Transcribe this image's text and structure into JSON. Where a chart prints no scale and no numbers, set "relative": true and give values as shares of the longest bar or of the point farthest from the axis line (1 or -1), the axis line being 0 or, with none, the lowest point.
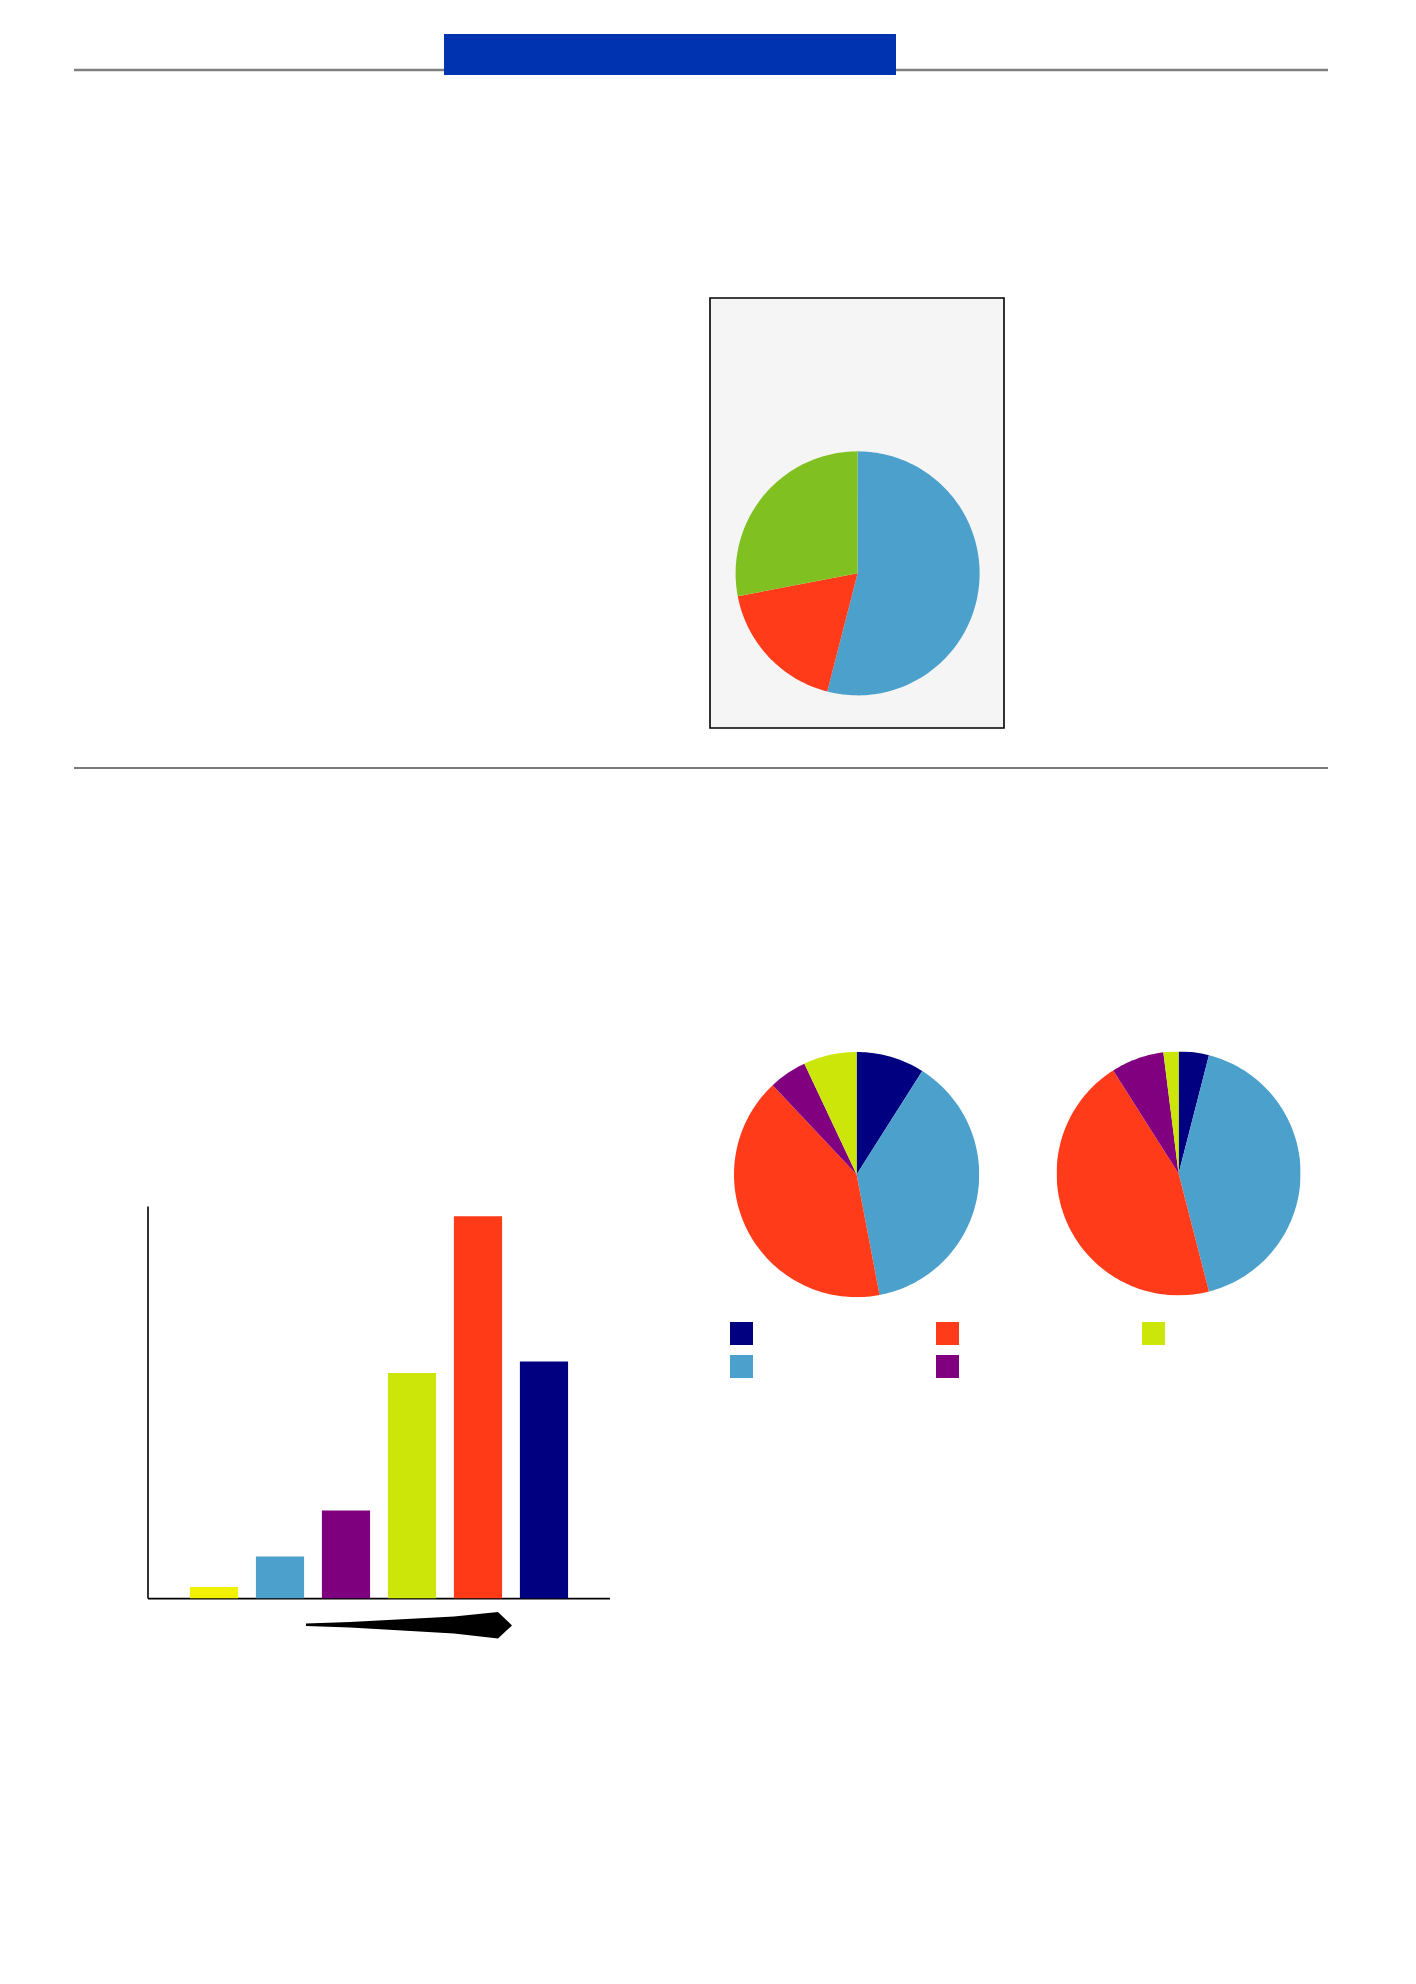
{
  "chart_data": [
    {
      "type": "pie",
      "categories": [
        null,
        null,
        null
      ],
      "values": [
        54,
        18,
        28
      ],
      "colors": [
        "#4ba0cc",
        "#ff3b1a",
        "#80c020"
      ]
    },
    {
      "type": "bar",
      "relative": true,
      "categories": [
        null,
        null,
        null,
        null,
        null,
        null
      ],
      "values": [
        0.03,
        0.11,
        0.23,
        0.59,
        1,
        0.62
      ],
      "colors": [
        "#f2f200",
        "#4ba0cc",
        "#7f007f",
        "#cce60a",
        "#ff3a17",
        "#000080"
      ]
    },
    {
      "type": "pie",
      "categories": [
        null,
        null,
        null,
        null,
        null
      ],
      "values": [
        9,
        38,
        41,
        5,
        7
      ],
      "colors": [
        "#000080",
        "#4ba0cc",
        "#ff3b1a",
        "#800080",
        "#cce60a"
      ]
    },
    {
      "type": "pie",
      "categories": [
        null,
        null,
        null,
        null,
        null
      ],
      "values": [
        4,
        42,
        45,
        7,
        2
      ],
      "colors": [
        "#000080",
        "#4ba0cc",
        "#ff3b1a",
        "#800080",
        "#cce60a"
      ]
    }
  ]
}
